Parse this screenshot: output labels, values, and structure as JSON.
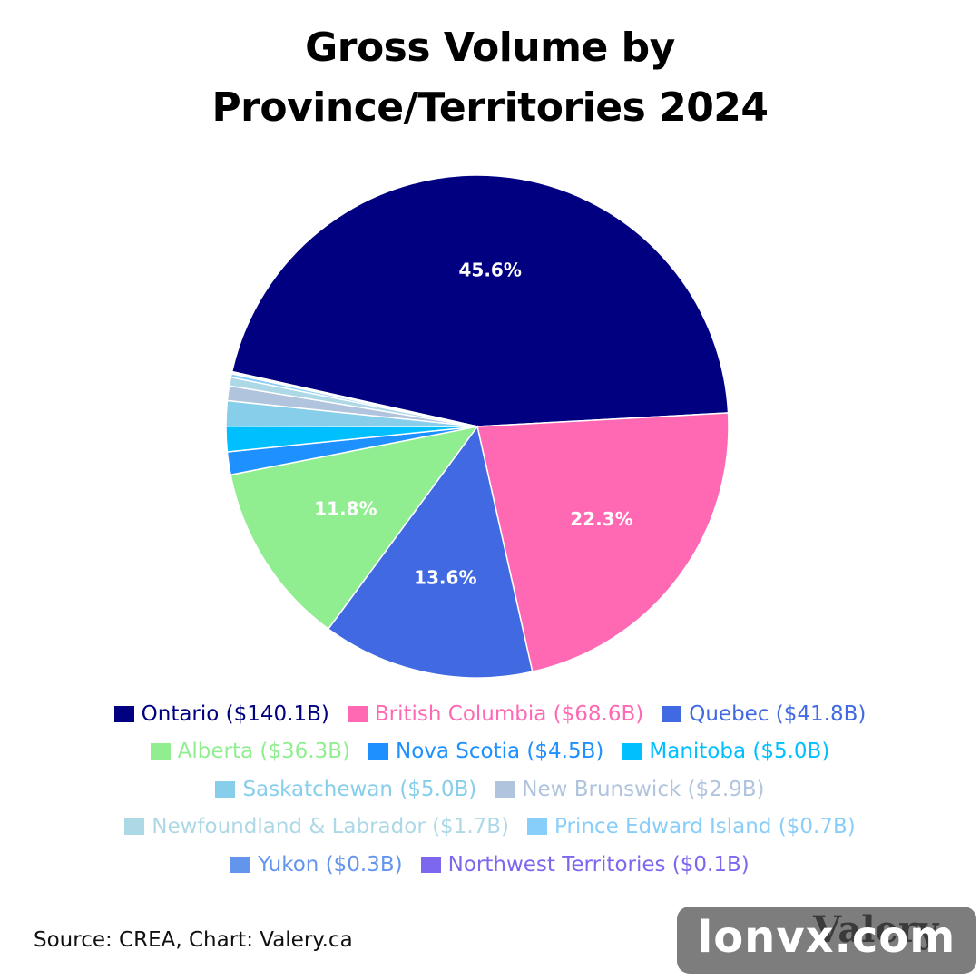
{
  "title": {
    "line1": "Gross Volume by",
    "line2": "Province/Territories 2024"
  },
  "chart_data": {
    "type": "pie",
    "title": "Gross Volume by Province/Territories 2024",
    "start": "left of center, proceeding clockwise with Ontario first",
    "legend_position": "bottom",
    "slices": [
      {
        "label": "Ontario ($140.1B)",
        "value": 140.1,
        "pct_label": "45.6%",
        "color": "#000080"
      },
      {
        "label": "British Columbia ($68.6B)",
        "value": 68.6,
        "pct_label": "22.3%",
        "color": "#FF69B4"
      },
      {
        "label": "Quebec ($41.8B)",
        "value": 41.8,
        "pct_label": "13.6%",
        "color": "#4169E1"
      },
      {
        "label": "Alberta ($36.3B)",
        "value": 36.3,
        "pct_label": "11.8%",
        "color": "#90EE90"
      },
      {
        "label": "Nova Scotia ($4.5B)",
        "value": 4.5,
        "pct_label": "",
        "color": "#1E90FF"
      },
      {
        "label": "Manitoba ($5.0B)",
        "value": 5.0,
        "pct_label": "",
        "color": "#00BFFF"
      },
      {
        "label": "Saskatchewan ($5.0B)",
        "value": 5.0,
        "pct_label": "",
        "color": "#87CEEB"
      },
      {
        "label": "New Brunswick ($2.9B)",
        "value": 2.9,
        "pct_label": "",
        "color": "#B0C4DE"
      },
      {
        "label": "Newfoundland & Labrador ($1.7B)",
        "value": 1.7,
        "pct_label": "",
        "color": "#ADD8E6"
      },
      {
        "label": "Prince Edward Island ($0.7B)",
        "value": 0.7,
        "pct_label": "",
        "color": "#87CEFA"
      },
      {
        "label": "Yukon ($0.3B)",
        "value": 0.3,
        "pct_label": "",
        "color": "#6495ED"
      },
      {
        "label": "Northwest Territories ($0.1B)",
        "value": 0.1,
        "pct_label": "",
        "color": "#7B68EE"
      }
    ]
  },
  "legend_rows": [
    [
      0,
      1,
      2
    ],
    [
      3,
      4,
      5
    ],
    [
      6,
      7
    ],
    [
      8,
      9
    ],
    [
      10,
      11
    ]
  ],
  "source": "Source: CREA, Chart: Valery.ca",
  "watermark": {
    "brand": "Valery",
    "text": "lonvx.com"
  }
}
